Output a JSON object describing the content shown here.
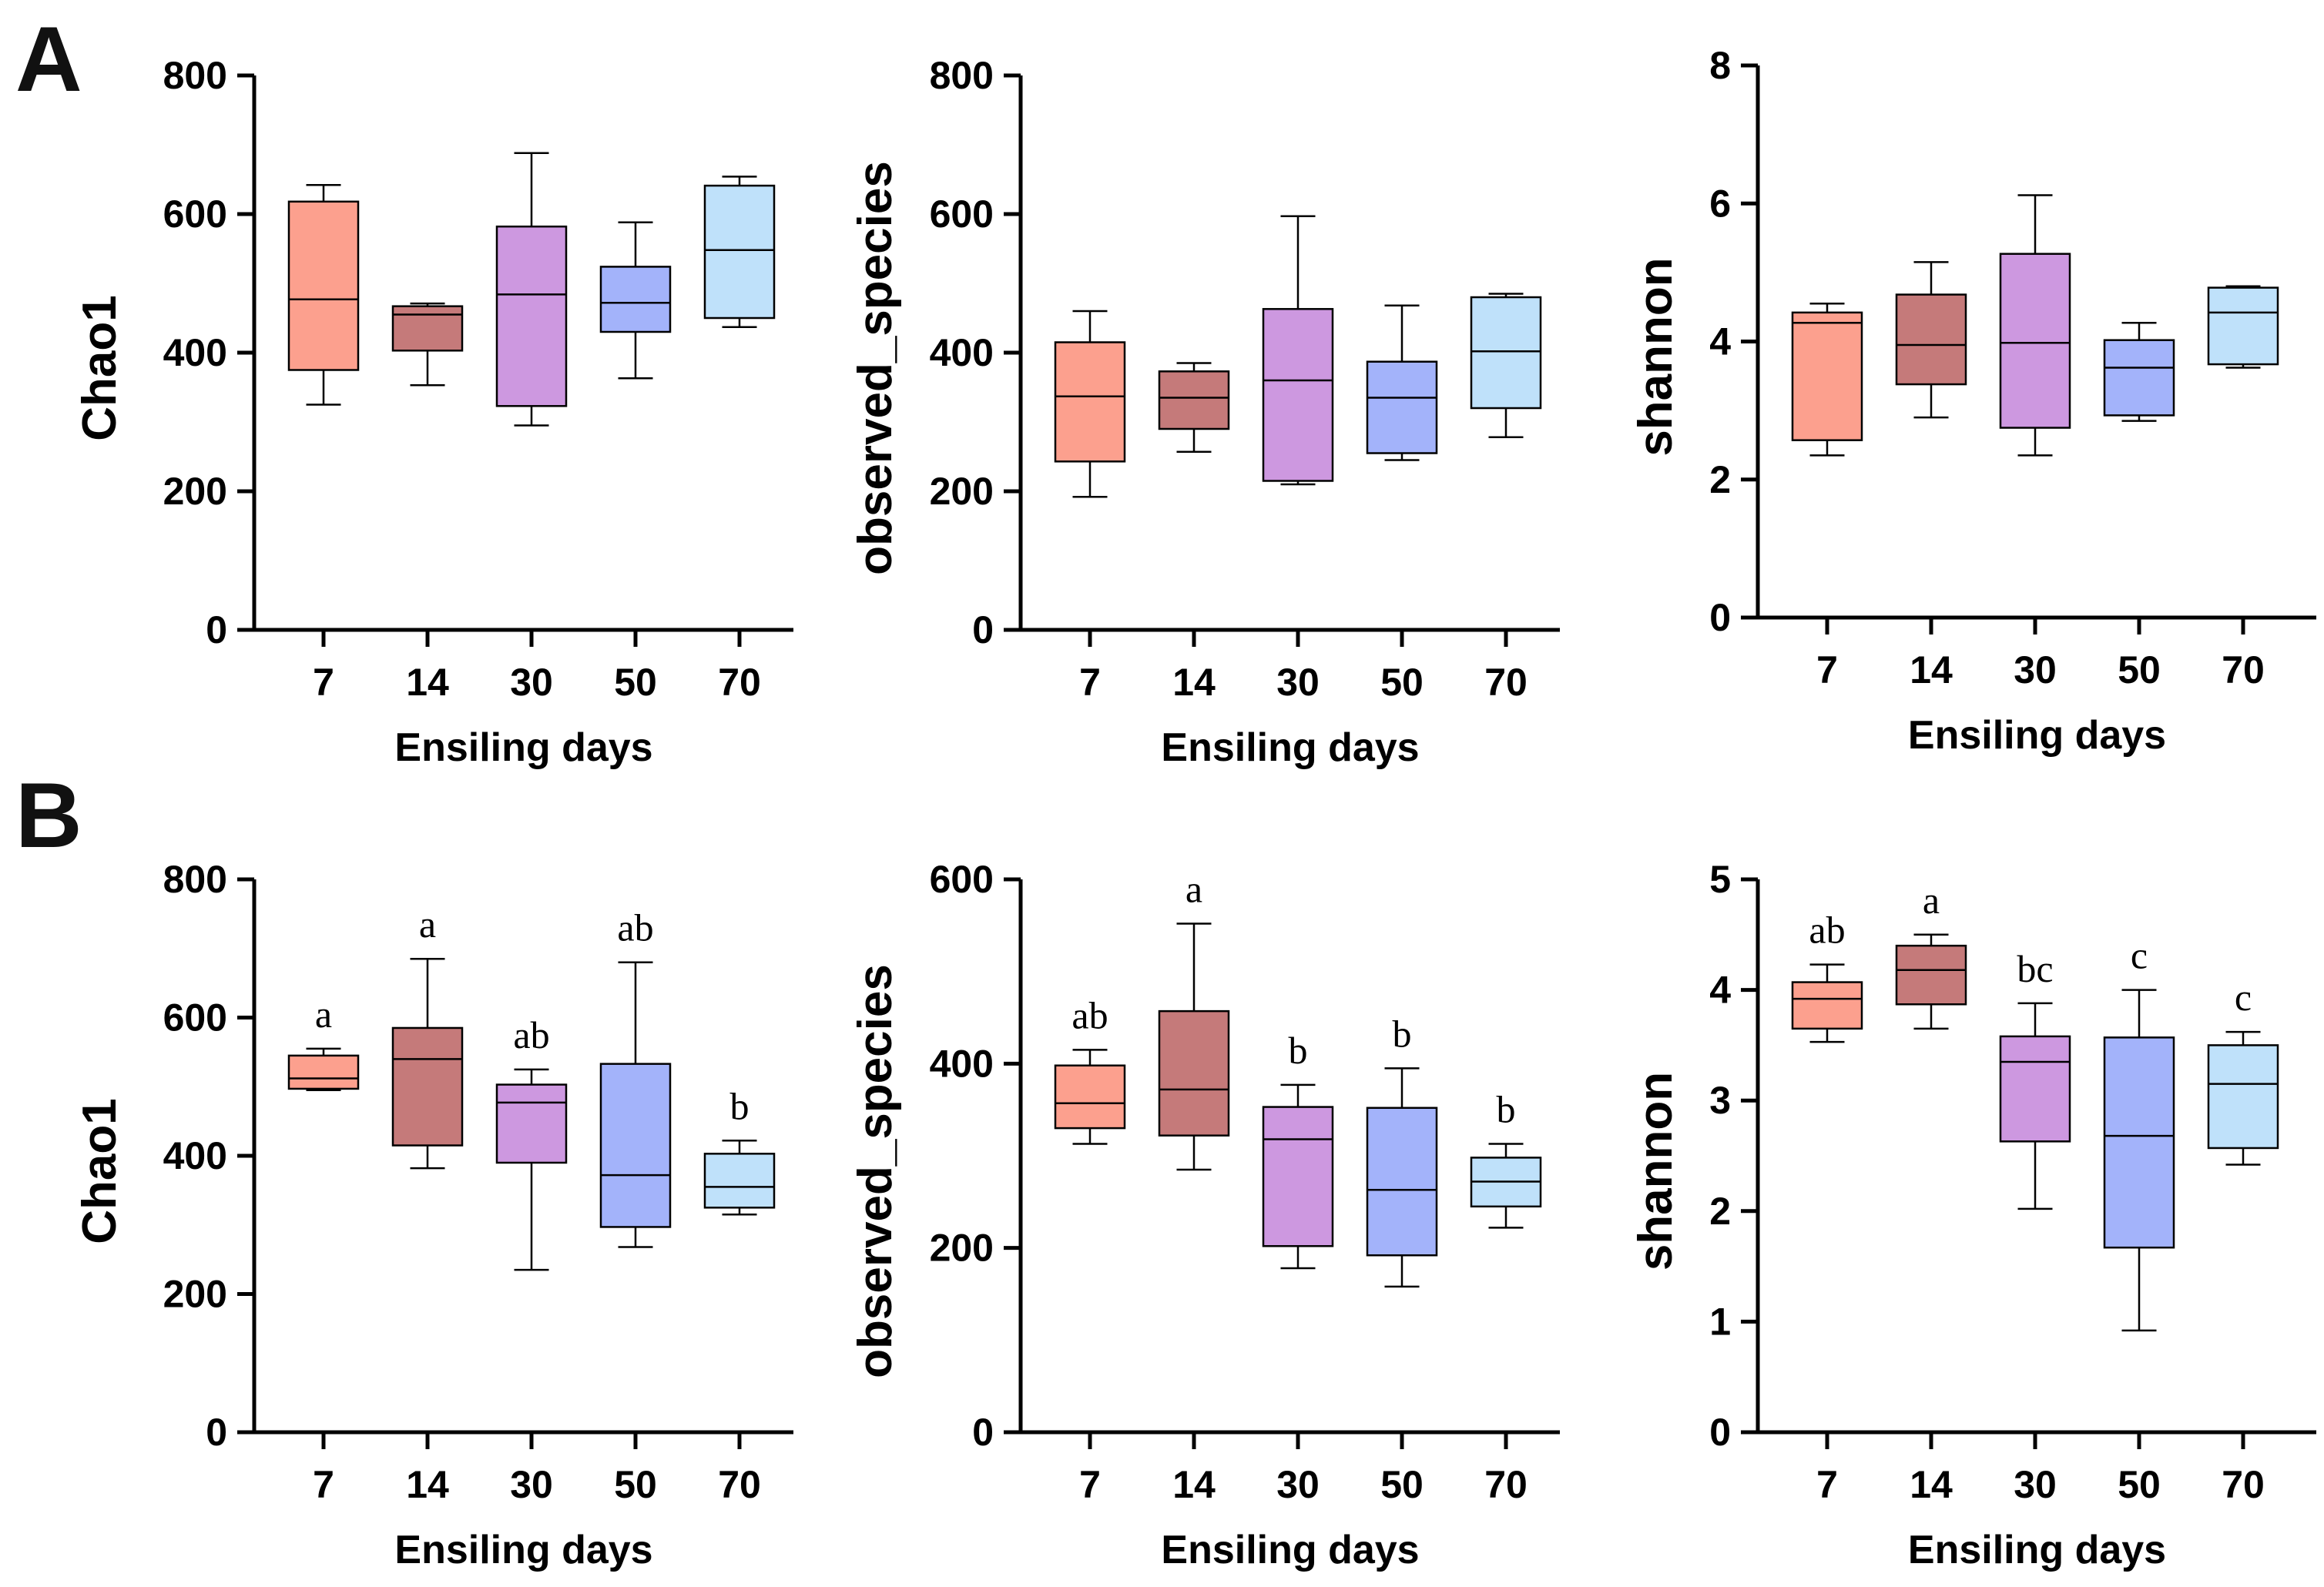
{
  "figure": {
    "panel_labels": [
      "A",
      "B"
    ],
    "colors": [
      "#FCA08E",
      "#C57A7A",
      "#CD98E0",
      "#A3B3FA",
      "#BFE1FA"
    ]
  },
  "chart_data": [
    {
      "id": "A-chao1",
      "panel": "A",
      "type": "box",
      "title": "",
      "xlabel": "Ensiling days",
      "ylabel": "Chao1",
      "ylim": [
        0,
        800
      ],
      "yticks": [
        0,
        200,
        400,
        600,
        800
      ],
      "categories": [
        "7",
        "14",
        "30",
        "50",
        "70"
      ],
      "boxes": [
        {
          "min": 325,
          "q1": 375,
          "median": 477,
          "q3": 618,
          "max": 642
        },
        {
          "min": 353,
          "q1": 403,
          "median": 455,
          "q3": 467,
          "max": 471
        },
        {
          "min": 295,
          "q1": 323,
          "median": 484,
          "q3": 582,
          "max": 688
        },
        {
          "min": 363,
          "q1": 430,
          "median": 472,
          "q3": 524,
          "max": 588
        },
        {
          "min": 437,
          "q1": 450,
          "median": 548,
          "q3": 641,
          "max": 654
        }
      ],
      "sig_labels": []
    },
    {
      "id": "A-observed",
      "panel": "A",
      "type": "box",
      "title": "",
      "xlabel": "Ensiling days",
      "ylabel": "observed_species",
      "ylim": [
        0,
        800
      ],
      "yticks": [
        0,
        200,
        400,
        600,
        800
      ],
      "categories": [
        "7",
        "14",
        "30",
        "50",
        "70"
      ],
      "boxes": [
        {
          "min": 192,
          "q1": 243,
          "median": 337,
          "q3": 415,
          "max": 460
        },
        {
          "min": 257,
          "q1": 290,
          "median": 335,
          "q3": 373,
          "max": 385
        },
        {
          "min": 210,
          "q1": 215,
          "median": 360,
          "q3": 463,
          "max": 597
        },
        {
          "min": 245,
          "q1": 255,
          "median": 335,
          "q3": 387,
          "max": 468
        },
        {
          "min": 278,
          "q1": 320,
          "median": 402,
          "q3": 480,
          "max": 485
        }
      ],
      "sig_labels": []
    },
    {
      "id": "A-shannon",
      "panel": "A",
      "type": "box",
      "title": "",
      "xlabel": "Ensiling days",
      "ylabel": "shannon",
      "ylim": [
        0,
        8
      ],
      "yticks": [
        0,
        2,
        4,
        6,
        8
      ],
      "categories": [
        "7",
        "14",
        "30",
        "50",
        "70"
      ],
      "boxes": [
        {
          "min": 2.35,
          "q1": 2.57,
          "median": 4.27,
          "q3": 4.42,
          "max": 4.55
        },
        {
          "min": 2.9,
          "q1": 3.38,
          "median": 3.95,
          "q3": 4.68,
          "max": 5.15
        },
        {
          "min": 2.35,
          "q1": 2.75,
          "median": 3.98,
          "q3": 5.27,
          "max": 6.12
        },
        {
          "min": 2.85,
          "q1": 2.93,
          "median": 3.62,
          "q3": 4.02,
          "max": 4.27
        },
        {
          "min": 3.62,
          "q1": 3.67,
          "median": 4.42,
          "q3": 4.78,
          "max": 4.8
        }
      ],
      "sig_labels": []
    },
    {
      "id": "B-chao1",
      "panel": "B",
      "type": "box",
      "title": "",
      "xlabel": "Ensiling days",
      "ylabel": "Chao1",
      "ylim": [
        0,
        800
      ],
      "yticks": [
        0,
        200,
        400,
        600,
        800
      ],
      "categories": [
        "7",
        "14",
        "30",
        "50",
        "70"
      ],
      "boxes": [
        {
          "min": 495,
          "q1": 497,
          "median": 512,
          "q3": 545,
          "max": 555
        },
        {
          "min": 382,
          "q1": 415,
          "median": 540,
          "q3": 585,
          "max": 685
        },
        {
          "min": 235,
          "q1": 390,
          "median": 477,
          "q3": 503,
          "max": 525
        },
        {
          "min": 268,
          "q1": 297,
          "median": 372,
          "q3": 533,
          "max": 680
        },
        {
          "min": 315,
          "q1": 325,
          "median": 355,
          "q3": 403,
          "max": 422
        }
      ],
      "sig_labels": [
        "a",
        "a",
        "ab",
        "ab",
        "b"
      ]
    },
    {
      "id": "B-observed",
      "panel": "B",
      "type": "box",
      "title": "",
      "xlabel": "Ensiling days",
      "ylabel": "observed_species",
      "ylim": [
        0,
        600
      ],
      "yticks": [
        0,
        200,
        400,
        600
      ],
      "categories": [
        "7",
        "14",
        "30",
        "50",
        "70"
      ],
      "boxes": [
        {
          "min": 313,
          "q1": 330,
          "median": 357,
          "q3": 398,
          "max": 415
        },
        {
          "min": 285,
          "q1": 322,
          "median": 372,
          "q3": 457,
          "max": 552
        },
        {
          "min": 178,
          "q1": 202,
          "median": 318,
          "q3": 353,
          "max": 377
        },
        {
          "min": 158,
          "q1": 192,
          "median": 263,
          "q3": 352,
          "max": 395
        },
        {
          "min": 222,
          "q1": 245,
          "median": 272,
          "q3": 298,
          "max": 313
        }
      ],
      "sig_labels": [
        "ab",
        "a",
        "b",
        "b",
        "b"
      ]
    },
    {
      "id": "B-shannon",
      "panel": "B",
      "type": "box",
      "title": "",
      "xlabel": "Ensiling days",
      "ylabel": "shannon",
      "ylim": [
        0,
        5
      ],
      "yticks": [
        0,
        1,
        2,
        3,
        4,
        5
      ],
      "categories": [
        "7",
        "14",
        "30",
        "50",
        "70"
      ],
      "boxes": [
        {
          "min": 3.53,
          "q1": 3.65,
          "median": 3.92,
          "q3": 4.07,
          "max": 4.23
        },
        {
          "min": 3.65,
          "q1": 3.87,
          "median": 4.18,
          "q3": 4.4,
          "max": 4.5
        },
        {
          "min": 2.02,
          "q1": 2.63,
          "median": 3.35,
          "q3": 3.58,
          "max": 3.88
        },
        {
          "min": 0.92,
          "q1": 1.67,
          "median": 2.68,
          "q3": 3.57,
          "max": 4.0
        },
        {
          "min": 2.42,
          "q1": 2.57,
          "median": 3.15,
          "q3": 3.5,
          "max": 3.62
        }
      ],
      "sig_labels": [
        "ab",
        "a",
        "bc",
        "c",
        "c"
      ]
    }
  ]
}
